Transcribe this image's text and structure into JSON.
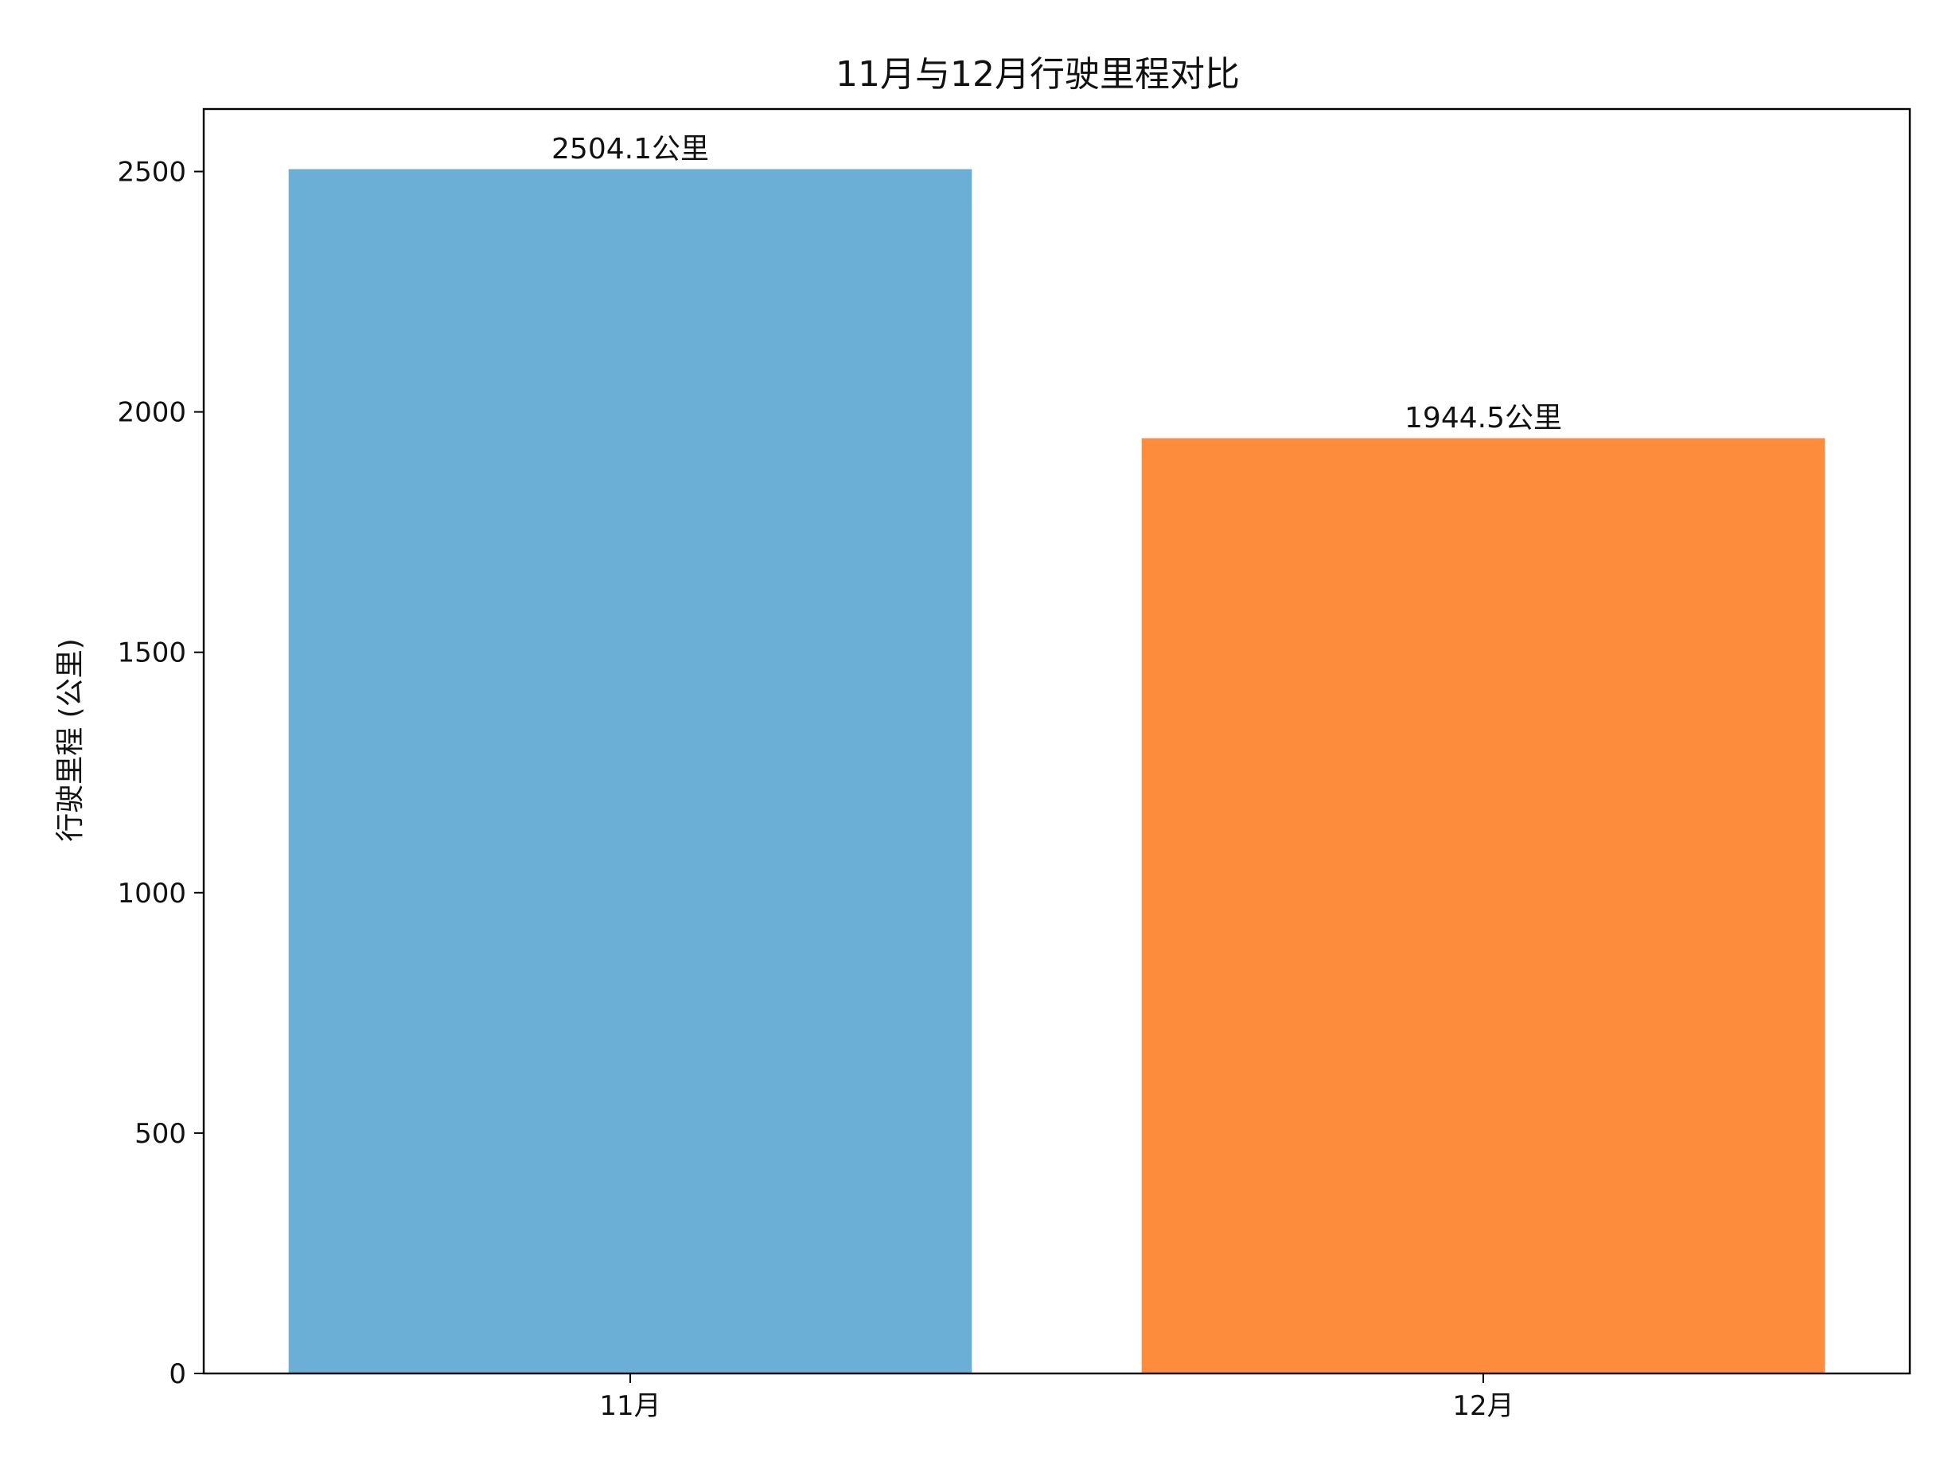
{
  "chart_data": {
    "type": "bar",
    "title": "11月与12月行驶里程对比",
    "xlabel": "",
    "ylabel": "行驶里程 (公里)",
    "categories": [
      "11月",
      "12月"
    ],
    "values": [
      2504.1,
      1944.5
    ],
    "data_labels": [
      "2504.1公里",
      "1944.5公里"
    ],
    "colors": [
      "#6baed6",
      "#fd8d3c"
    ],
    "ylim": [
      0,
      2630
    ],
    "yticks": [
      0,
      500,
      1000,
      1500,
      2000,
      2500
    ],
    "grid": false,
    "legend": "none"
  }
}
